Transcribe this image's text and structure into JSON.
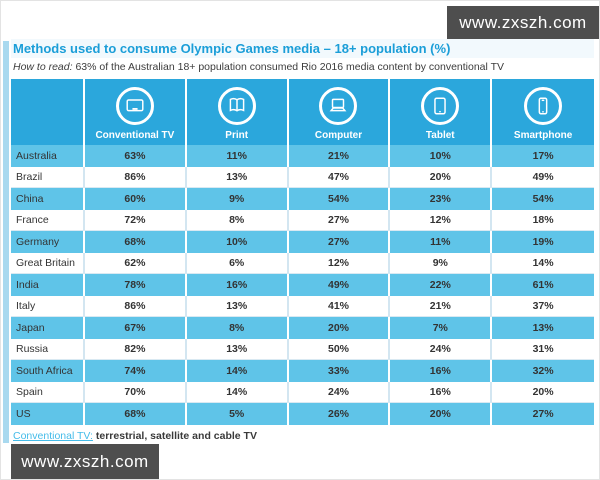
{
  "watermark": {
    "text": "www.zxszh.com"
  },
  "title": "Methods used to consume Olympic Games media – 18+ population (%)",
  "subtitle": {
    "prefix": "How to read:",
    "text": " 63% of the Australian 18+ population consumed Rio 2016 media content by conventional TV"
  },
  "table": {
    "columns": [
      {
        "label": "Conventional TV",
        "icon": "tv-icon"
      },
      {
        "label": "Print",
        "icon": "print-icon"
      },
      {
        "label": "Computer",
        "icon": "computer-icon"
      },
      {
        "label": "Tablet",
        "icon": "tablet-icon"
      },
      {
        "label": "Smartphone",
        "icon": "smartphone-icon"
      }
    ],
    "rows": [
      {
        "country": "Australia",
        "values": [
          "63%",
          "11%",
          "21%",
          "10%",
          "17%"
        ]
      },
      {
        "country": "Brazil",
        "values": [
          "86%",
          "13%",
          "47%",
          "20%",
          "49%"
        ]
      },
      {
        "country": "China",
        "values": [
          "60%",
          "9%",
          "54%",
          "23%",
          "54%"
        ]
      },
      {
        "country": "France",
        "values": [
          "72%",
          "8%",
          "27%",
          "12%",
          "18%"
        ]
      },
      {
        "country": "Germany",
        "values": [
          "68%",
          "10%",
          "27%",
          "11%",
          "19%"
        ]
      },
      {
        "country": "Great Britain",
        "values": [
          "62%",
          "6%",
          "12%",
          "9%",
          "14%"
        ]
      },
      {
        "country": "India",
        "values": [
          "78%",
          "16%",
          "49%",
          "22%",
          "61%"
        ]
      },
      {
        "country": "Italy",
        "values": [
          "86%",
          "13%",
          "41%",
          "21%",
          "37%"
        ]
      },
      {
        "country": "Japan",
        "values": [
          "67%",
          "8%",
          "20%",
          "7%",
          "13%"
        ]
      },
      {
        "country": "Russia",
        "values": [
          "82%",
          "13%",
          "50%",
          "24%",
          "31%"
        ]
      },
      {
        "country": "South Africa",
        "values": [
          "74%",
          "14%",
          "33%",
          "16%",
          "32%"
        ]
      },
      {
        "country": "Spain",
        "values": [
          "70%",
          "14%",
          "24%",
          "16%",
          "20%"
        ]
      },
      {
        "country": "US",
        "values": [
          "68%",
          "5%",
          "26%",
          "20%",
          "27%"
        ]
      }
    ]
  },
  "footnote": {
    "term": "Conventional TV:",
    "definition": " terrestrial, satellite and cable TV"
  },
  "colors": {
    "header": "#2ba7dc",
    "row_alt": "#5fc4e8",
    "title": "#1b9ed8"
  },
  "chart_data": {
    "type": "table",
    "title": "Methods used to consume Olympic Games media – 18+ population (%)",
    "categories": [
      "Australia",
      "Brazil",
      "China",
      "France",
      "Germany",
      "Great Britain",
      "India",
      "Italy",
      "Japan",
      "Russia",
      "South Africa",
      "Spain",
      "US"
    ],
    "series": [
      {
        "name": "Conventional TV",
        "values": [
          63,
          86,
          60,
          72,
          68,
          62,
          78,
          86,
          67,
          82,
          74,
          70,
          68
        ]
      },
      {
        "name": "Print",
        "values": [
          11,
          13,
          9,
          8,
          10,
          6,
          16,
          13,
          8,
          13,
          14,
          14,
          5
        ]
      },
      {
        "name": "Computer",
        "values": [
          21,
          47,
          54,
          27,
          27,
          12,
          49,
          41,
          20,
          50,
          33,
          24,
          26
        ]
      },
      {
        "name": "Tablet",
        "values": [
          10,
          20,
          23,
          12,
          11,
          9,
          22,
          21,
          7,
          24,
          16,
          16,
          20
        ]
      },
      {
        "name": "Smartphone",
        "values": [
          17,
          49,
          54,
          18,
          19,
          14,
          61,
          37,
          13,
          31,
          32,
          20,
          27
        ]
      }
    ]
  }
}
